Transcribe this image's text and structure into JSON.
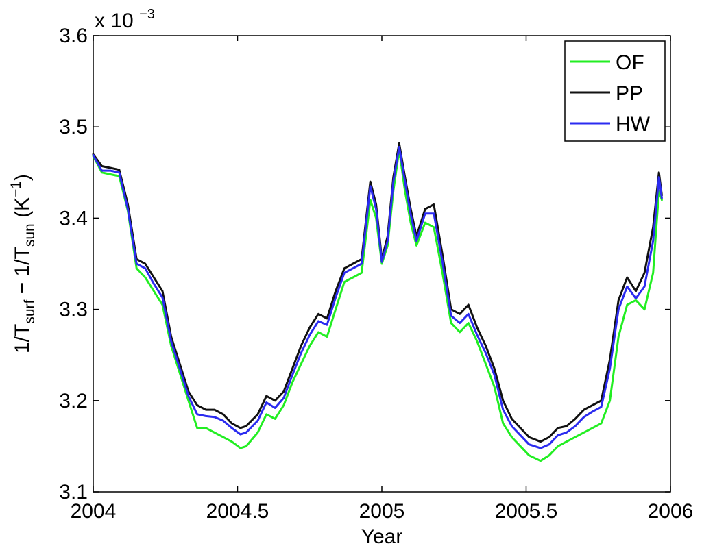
{
  "chart_data": {
    "type": "line",
    "xlabel": "Year",
    "ylabel": {
      "base1": "1/T",
      "sub1": "surf",
      "mid": " − 1/T",
      "sub2": "sun",
      "unit_open": " (K",
      "unit_sup": "−1",
      "unit_close": ")"
    },
    "exponent": {
      "base": "x 10",
      "power": "−3"
    },
    "xlim": [
      2004,
      2006
    ],
    "ylim": [
      3.1,
      3.6
    ],
    "x_ticks": [
      2004,
      2004.5,
      2005,
      2005.5,
      2006
    ],
    "x_tick_labels": [
      "2004",
      "2004.5",
      "2005",
      "2005.5",
      "2006"
    ],
    "y_ticks": [
      3.1,
      3.2,
      3.3,
      3.4,
      3.5,
      3.6
    ],
    "y_tick_labels": [
      "3.1",
      "3.2",
      "3.3",
      "3.4",
      "3.5",
      "3.6"
    ],
    "grid": false,
    "legend": {
      "placement": "top-right"
    },
    "x": [
      2004.0,
      2004.03,
      2004.06,
      2004.09,
      2004.12,
      2004.15,
      2004.18,
      2004.21,
      2004.24,
      2004.27,
      2004.3,
      2004.33,
      2004.36,
      2004.39,
      2004.42,
      2004.45,
      2004.48,
      2004.51,
      2004.53,
      2004.57,
      2004.6,
      2004.63,
      2004.66,
      2004.69,
      2004.72,
      2004.75,
      2004.78,
      2004.81,
      2004.84,
      2004.87,
      2004.9,
      2004.93,
      2004.96,
      2004.98,
      2005.0,
      2005.02,
      2005.04,
      2005.06,
      2005.08,
      2005.1,
      2005.12,
      2005.15,
      2005.18,
      2005.21,
      2005.24,
      2005.27,
      2005.3,
      2005.33,
      2005.36,
      2005.39,
      2005.42,
      2005.45,
      2005.48,
      2005.51,
      2005.55,
      2005.58,
      2005.61,
      2005.64,
      2005.67,
      2005.7,
      2005.73,
      2005.76,
      2005.79,
      2005.82,
      2005.85,
      2005.88,
      2005.91,
      2005.94,
      2005.96,
      2005.97
    ],
    "series": [
      {
        "name": "OF",
        "color": "#22ee22",
        "values": [
          3.468,
          3.45,
          3.448,
          3.446,
          3.408,
          3.345,
          3.335,
          3.32,
          3.305,
          3.26,
          3.23,
          3.2,
          3.17,
          3.17,
          3.165,
          3.16,
          3.155,
          3.148,
          3.15,
          3.165,
          3.185,
          3.18,
          3.195,
          3.22,
          3.24,
          3.26,
          3.275,
          3.27,
          3.3,
          3.33,
          3.335,
          3.34,
          3.42,
          3.4,
          3.35,
          3.37,
          3.43,
          3.475,
          3.43,
          3.395,
          3.37,
          3.395,
          3.39,
          3.34,
          3.285,
          3.275,
          3.285,
          3.265,
          3.24,
          3.215,
          3.175,
          3.16,
          3.15,
          3.14,
          3.134,
          3.14,
          3.15,
          3.155,
          3.16,
          3.165,
          3.17,
          3.175,
          3.2,
          3.27,
          3.305,
          3.31,
          3.3,
          3.34,
          3.43,
          3.42
        ]
      },
      {
        "name": "PP",
        "color": "#111111",
        "values": [
          3.47,
          3.457,
          3.455,
          3.453,
          3.415,
          3.355,
          3.35,
          3.335,
          3.32,
          3.27,
          3.24,
          3.21,
          3.195,
          3.19,
          3.19,
          3.185,
          3.175,
          3.17,
          3.172,
          3.185,
          3.205,
          3.2,
          3.21,
          3.235,
          3.26,
          3.28,
          3.295,
          3.29,
          3.32,
          3.345,
          3.35,
          3.355,
          3.44,
          3.415,
          3.355,
          3.38,
          3.445,
          3.482,
          3.445,
          3.41,
          3.38,
          3.41,
          3.415,
          3.36,
          3.3,
          3.295,
          3.305,
          3.28,
          3.26,
          3.235,
          3.2,
          3.18,
          3.17,
          3.16,
          3.155,
          3.16,
          3.17,
          3.172,
          3.18,
          3.19,
          3.195,
          3.2,
          3.245,
          3.31,
          3.335,
          3.32,
          3.34,
          3.39,
          3.45,
          3.425
        ]
      },
      {
        "name": "HW",
        "color": "#2b2bf0",
        "values": [
          3.469,
          3.452,
          3.452,
          3.45,
          3.41,
          3.35,
          3.345,
          3.328,
          3.313,
          3.265,
          3.235,
          3.205,
          3.185,
          3.183,
          3.182,
          3.178,
          3.17,
          3.163,
          3.165,
          3.178,
          3.198,
          3.192,
          3.203,
          3.228,
          3.252,
          3.272,
          3.287,
          3.283,
          3.313,
          3.34,
          3.345,
          3.35,
          3.435,
          3.41,
          3.352,
          3.375,
          3.44,
          3.478,
          3.44,
          3.404,
          3.375,
          3.405,
          3.405,
          3.352,
          3.293,
          3.285,
          3.295,
          3.272,
          3.252,
          3.228,
          3.19,
          3.172,
          3.162,
          3.152,
          3.148,
          3.152,
          3.162,
          3.165,
          3.172,
          3.182,
          3.188,
          3.193,
          3.235,
          3.3,
          3.325,
          3.312,
          3.325,
          3.375,
          3.445,
          3.422
        ]
      }
    ]
  }
}
